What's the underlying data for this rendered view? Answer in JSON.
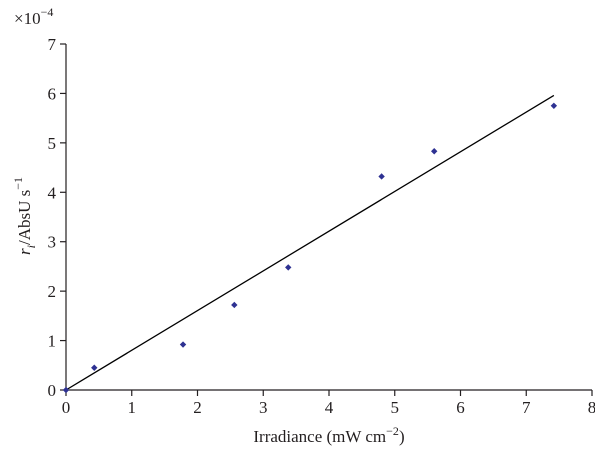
{
  "chart_data": {
    "type": "scatter",
    "xlabel_text": "Irradiance (mW cm",
    "xlabel_exp": "−2",
    "xlabel_close": ")",
    "ylabel_var": "r",
    "ylabel_sub": "i",
    "ylabel_text": "/AbsU s",
    "ylabel_exp": "−1",
    "y_multiplier_base": "×10",
    "y_multiplier_exp": "−4",
    "xlim": [
      0,
      8
    ],
    "ylim": [
      0,
      7
    ],
    "xticks": [
      "0",
      "1",
      "2",
      "3",
      "4",
      "5",
      "6",
      "7",
      "8"
    ],
    "yticks": [
      "0",
      "1",
      "2",
      "3",
      "4",
      "5",
      "6",
      "7"
    ],
    "grid": false,
    "series": [
      {
        "marker": "diamond",
        "color": "#2e3192",
        "points": [
          [
            0.0,
            0.0
          ],
          [
            0.43,
            0.45
          ],
          [
            1.78,
            0.92
          ],
          [
            2.56,
            1.72
          ],
          [
            3.38,
            2.48
          ],
          [
            4.8,
            4.32
          ],
          [
            5.6,
            4.83
          ],
          [
            7.42,
            5.75
          ]
        ]
      }
    ],
    "fit_line": {
      "color": "#000000",
      "from": [
        0,
        0
      ],
      "to": [
        7.42,
        5.96
      ]
    }
  }
}
